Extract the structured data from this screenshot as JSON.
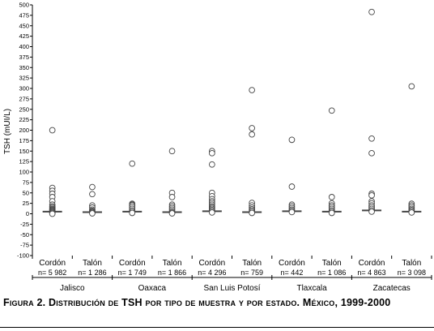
{
  "chart_data": {
    "type": "scatter",
    "ylabel": "TSH (mUI/L)",
    "ylim": [
      -100,
      500
    ],
    "yticks": [
      -100,
      -75,
      -50,
      -25,
      0,
      25,
      50,
      75,
      100,
      125,
      150,
      175,
      200,
      225,
      250,
      275,
      300,
      325,
      350,
      375,
      400,
      425,
      450,
      475,
      500
    ],
    "grid": false,
    "groups": [
      {
        "state": "Jalisco",
        "samples": [
          {
            "label": "Cordón",
            "n": "n= 5 982",
            "median": 5,
            "points": [
              200,
              62,
              55,
              48,
              40,
              30,
              22,
              18,
              15,
              12,
              10,
              8,
              6,
              4,
              2,
              0
            ]
          },
          {
            "label": "Talón",
            "n": "n= 1 286",
            "median": 4,
            "points": [
              64,
              47,
              20,
              15,
              10,
              7,
              5,
              3,
              1
            ]
          }
        ]
      },
      {
        "state": "Oaxaca",
        "samples": [
          {
            "label": "Cordón",
            "n": "n= 1 749",
            "median": 5,
            "points": [
              120,
              24,
              22,
              20,
              16,
              12,
              8,
              5,
              2
            ]
          },
          {
            "label": "Talón",
            "n": "n= 1 866",
            "median": 4,
            "points": [
              150,
              50,
              40,
              22,
              18,
              14,
              10,
              6,
              3,
              1
            ]
          }
        ]
      },
      {
        "state": "San Luis Potosí",
        "samples": [
          {
            "label": "Cordón",
            "n": "n= 4 296",
            "median": 6,
            "points": [
              150,
              145,
              118,
              50,
              42,
              35,
              30,
              26,
              22,
              18,
              15,
              12,
              9,
              6,
              3
            ]
          },
          {
            "label": "Talón",
            "n": "n= 759",
            "median": 4,
            "points": [
              296,
              205,
              190,
              26,
              20,
              15,
              11,
              8,
              5,
              2
            ]
          }
        ]
      },
      {
        "state": "Tlaxcala",
        "samples": [
          {
            "label": "Cordón",
            "n": "n= 442",
            "median": 6,
            "points": [
              177,
              65,
              22,
              18,
              14,
              10,
              7,
              4
            ]
          },
          {
            "label": "Talón",
            "n": "n= 1 086",
            "median": 5,
            "points": [
              247,
              40,
              25,
              20,
              16,
              12,
              8,
              5,
              2
            ]
          }
        ]
      },
      {
        "state": "Zacatecas",
        "samples": [
          {
            "label": "Cordón",
            "n": "n= 4 863",
            "median": 8,
            "points": [
              483,
              180,
              145,
              48,
              44,
              30,
              25,
              20,
              16,
              12,
              8,
              5
            ]
          },
          {
            "label": "Talón",
            "n": "n= 3 098",
            "median": 5,
            "points": [
              305,
              24,
              20,
              16,
              12,
              9,
              6,
              3
            ]
          }
        ]
      }
    ]
  },
  "caption": {
    "text": "Figura 2. Distribución de TSH por tipo de muestra y por estado. México, 1999-2000"
  }
}
